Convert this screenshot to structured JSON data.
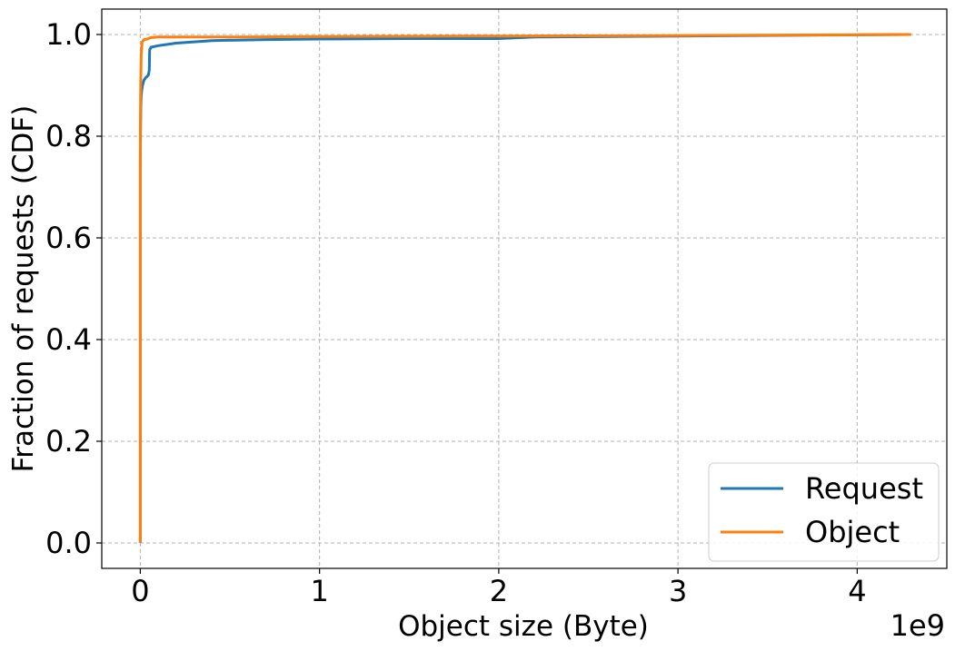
{
  "chart_data": {
    "type": "line",
    "title": "",
    "xlabel": "Object size (Byte)",
    "ylabel": "Fraction of requests (CDF)",
    "x_offset_label": "1e9",
    "x_scale": 1000000000,
    "xlim": [
      -0.215,
      4.5
    ],
    "ylim": [
      -0.05,
      1.05
    ],
    "xticks": [
      0,
      1,
      2,
      3,
      4
    ],
    "xtick_labels": [
      "0",
      "1",
      "2",
      "3",
      "4"
    ],
    "yticks": [
      0.0,
      0.2,
      0.4,
      0.6,
      0.8,
      1.0
    ],
    "ytick_labels": [
      "0.0",
      "0.2",
      "0.4",
      "0.6",
      "0.8",
      "1.0"
    ],
    "grid": true,
    "legend_position": "lower right",
    "series": [
      {
        "name": "Request",
        "color": "#1f77b4",
        "x": [
          0.0,
          0.0,
          0.001,
          0.002,
          0.003,
          0.005,
          0.008,
          0.012,
          0.02,
          0.03,
          0.045,
          0.05,
          0.052,
          0.06,
          0.1,
          0.2,
          0.4,
          0.7,
          1.0,
          1.5,
          2.0,
          2.2,
          3.0,
          4.3
        ],
        "y": [
          0.0,
          0.75,
          0.8,
          0.83,
          0.86,
          0.88,
          0.89,
          0.9,
          0.91,
          0.915,
          0.92,
          0.93,
          0.97,
          0.975,
          0.978,
          0.983,
          0.988,
          0.99,
          0.991,
          0.992,
          0.992,
          0.995,
          0.997,
          1.0
        ]
      },
      {
        "name": "Object",
        "color": "#ff7f0e",
        "x": [
          0.0,
          0.0,
          0.002,
          0.005,
          0.01,
          0.02,
          0.04,
          0.05,
          0.06,
          0.1,
          0.5,
          1.0,
          2.0,
          3.0,
          4.3
        ],
        "y": [
          0.0,
          0.8,
          0.9,
          0.96,
          0.985,
          0.99,
          0.991,
          0.993,
          0.994,
          0.995,
          0.995,
          0.996,
          0.997,
          0.998,
          1.0
        ]
      }
    ]
  }
}
